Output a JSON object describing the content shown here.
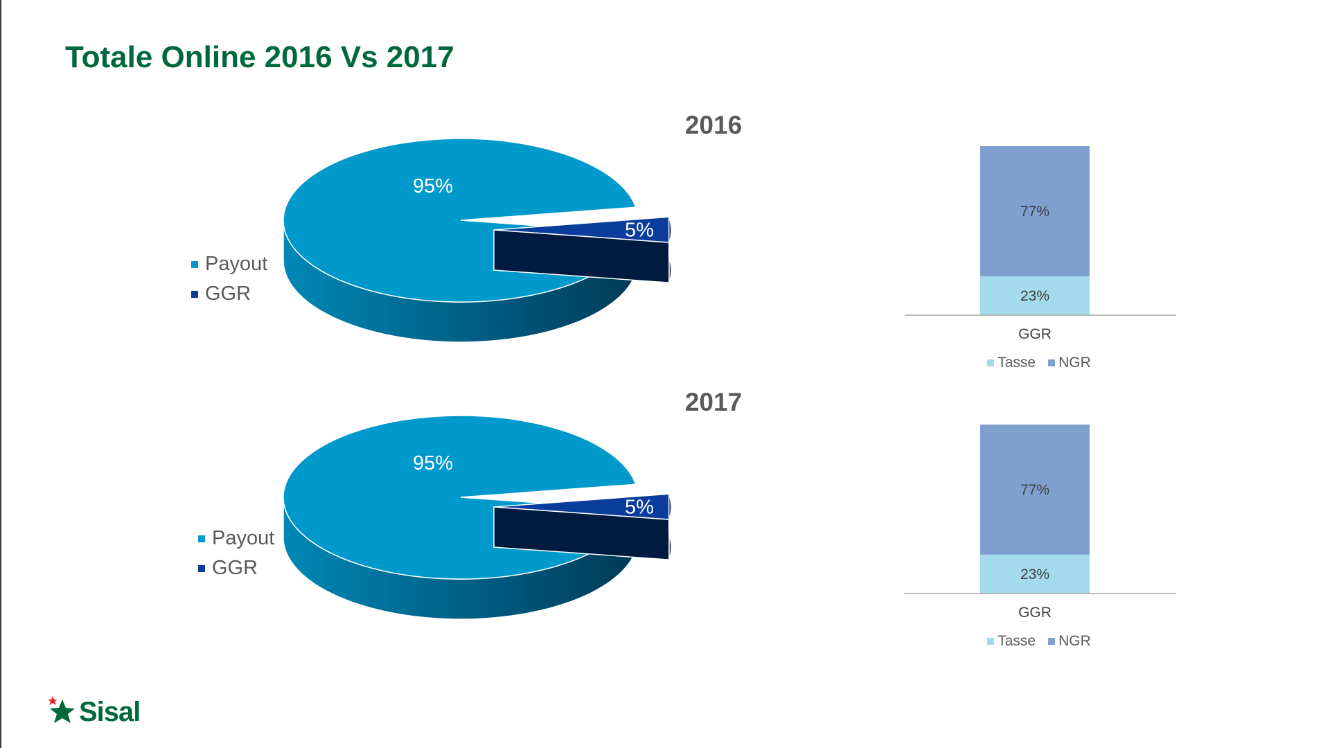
{
  "slide": {
    "title": "Totale Online 2016 Vs 2017",
    "logo_text": "Sisal"
  },
  "colors": {
    "payout": "#0099cc",
    "ggr": "#0a3d9b",
    "tasse": "#a3dbec",
    "ngr": "#7f9fce",
    "title": "#00693c"
  },
  "chart_data": [
    {
      "type": "pie",
      "title": "2016",
      "labels": [
        "Payout",
        "GGR"
      ],
      "values": [
        95,
        5
      ],
      "data_labels": [
        "95%",
        "5%"
      ],
      "legend_position": "left"
    },
    {
      "type": "bar",
      "stacked": true,
      "categories": [
        "GGR"
      ],
      "series": [
        {
          "name": "Tasse",
          "values": [
            23
          ]
        },
        {
          "name": "NGR",
          "values": [
            77
          ]
        }
      ],
      "data_labels": {
        "Tasse": "23%",
        "NGR": "77%"
      },
      "legend_position": "bottom"
    },
    {
      "type": "pie",
      "title": "2017",
      "labels": [
        "Payout",
        "GGR"
      ],
      "values": [
        95,
        5
      ],
      "data_labels": [
        "95%",
        "5%"
      ],
      "legend_position": "left"
    },
    {
      "type": "bar",
      "stacked": true,
      "categories": [
        "GGR"
      ],
      "series": [
        {
          "name": "Tasse",
          "values": [
            23
          ]
        },
        {
          "name": "NGR",
          "values": [
            77
          ]
        }
      ],
      "data_labels": {
        "Tasse": "23%",
        "NGR": "77%"
      },
      "legend_position": "bottom"
    }
  ]
}
